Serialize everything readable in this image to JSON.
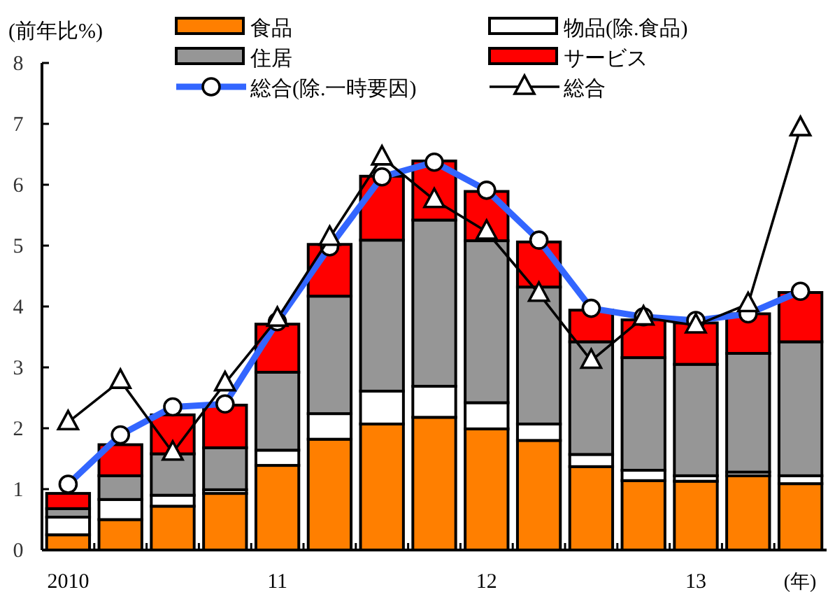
{
  "chart_data": {
    "type": "bar",
    "stacked": true,
    "ylabel": "(前年比%)",
    "xlabel": "(年)",
    "categories": [
      "2010",
      null,
      null,
      null,
      "11",
      null,
      null,
      null,
      "12",
      null,
      null,
      null,
      "13",
      null,
      null
    ],
    "ylim": [
      0,
      8
    ],
    "yticks": [
      0,
      1,
      2,
      3,
      4,
      5,
      6,
      7,
      8
    ],
    "legend": "top",
    "series": [
      {
        "name": "食品",
        "color": "#ff7f00",
        "values": [
          0.25,
          0.5,
          0.72,
          0.93,
          1.39,
          1.82,
          2.07,
          2.18,
          1.99,
          1.8,
          1.37,
          1.14,
          1.13,
          1.22,
          1.09
        ]
      },
      {
        "name": "物品(除.食品)",
        "color": "#ffffff",
        "values": [
          0.29,
          0.33,
          0.18,
          0.06,
          0.25,
          0.42,
          0.54,
          0.51,
          0.43,
          0.27,
          0.2,
          0.17,
          0.09,
          0.06,
          0.13
        ]
      },
      {
        "name": "住居",
        "color": "#969696",
        "values": [
          0.14,
          0.39,
          0.68,
          0.69,
          1.28,
          1.93,
          2.48,
          2.73,
          2.66,
          2.25,
          1.85,
          1.85,
          1.83,
          1.95,
          2.2
        ]
      },
      {
        "name": "サービス",
        "color": "#ff0000",
        "values": [
          0.25,
          0.51,
          0.64,
          0.7,
          0.79,
          0.85,
          1.05,
          0.97,
          0.81,
          0.74,
          0.52,
          0.62,
          0.68,
          0.65,
          0.81
        ]
      },
      {
        "name": "総合(除.一時要因)",
        "type": "line",
        "color": "#3366ff",
        "marker": "circle",
        "values": [
          1.08,
          1.89,
          2.35,
          2.4,
          3.75,
          4.98,
          6.13,
          6.37,
          5.91,
          5.09,
          3.97,
          3.83,
          3.77,
          3.88,
          4.25
        ]
      },
      {
        "name": "総合",
        "type": "line",
        "color": "#000000",
        "marker": "triangle",
        "values": [
          2.1,
          2.78,
          1.6,
          2.74,
          3.8,
          5.13,
          6.45,
          5.75,
          5.23,
          4.21,
          3.11,
          3.82,
          3.69,
          4.04,
          6.93
        ]
      }
    ]
  }
}
